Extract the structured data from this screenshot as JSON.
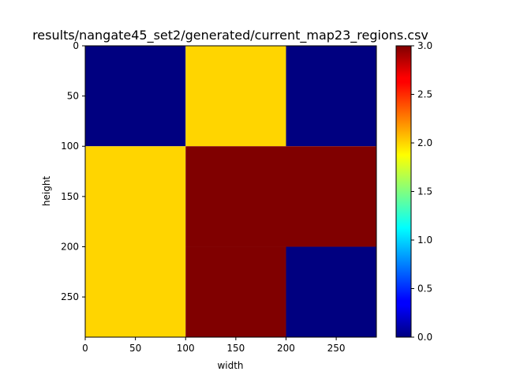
{
  "chart_data": {
    "type": "heatmap",
    "title": "results/nangate45_set2/generated/current_map23_regions.csv",
    "xlabel": "width",
    "ylabel": "height",
    "xlim": [
      0,
      290
    ],
    "ylim": [
      290,
      0
    ],
    "x_ticks": [
      0,
      50,
      100,
      150,
      200,
      250
    ],
    "y_ticks": [
      0,
      50,
      100,
      150,
      200,
      250
    ],
    "colormap": "jet",
    "colorbar": {
      "min": 0.0,
      "max": 3.0,
      "ticks": [
        "0.0",
        "0.5",
        "1.0",
        "1.5",
        "2.0",
        "2.5",
        "3.0"
      ]
    },
    "cells": [
      {
        "x0": 0,
        "x1": 100,
        "y0": 0,
        "y1": 100,
        "value": 0
      },
      {
        "x0": 100,
        "x1": 200,
        "y0": 0,
        "y1": 100,
        "value": 2
      },
      {
        "x0": 200,
        "x1": 290,
        "y0": 0,
        "y1": 100,
        "value": 0
      },
      {
        "x0": 0,
        "x1": 100,
        "y0": 100,
        "y1": 290,
        "value": 2
      },
      {
        "x0": 100,
        "x1": 290,
        "y0": 100,
        "y1": 200,
        "value": 3
      },
      {
        "x0": 100,
        "x1": 200,
        "y0": 200,
        "y1": 290,
        "value": 3
      },
      {
        "x0": 200,
        "x1": 290,
        "y0": 200,
        "y1": 290,
        "value": 0
      }
    ]
  }
}
